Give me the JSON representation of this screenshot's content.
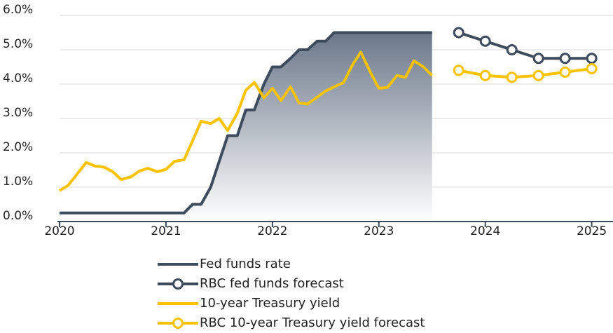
{
  "chart_data": {
    "type": "line",
    "x": [
      2020.0,
      2020.08,
      2020.17,
      2020.25,
      2020.33,
      2020.42,
      2020.5,
      2020.58,
      2020.67,
      2020.75,
      2020.83,
      2020.92,
      2021.0,
      2021.08,
      2021.17,
      2021.25,
      2021.33,
      2021.42,
      2021.5,
      2021.58,
      2021.67,
      2021.75,
      2021.83,
      2021.92,
      2022.0,
      2022.08,
      2022.17,
      2022.25,
      2022.33,
      2022.42,
      2022.5,
      2022.58,
      2022.67,
      2022.75,
      2022.83,
      2022.92,
      2023.0,
      2023.08,
      2023.17,
      2023.25,
      2023.33,
      2023.42,
      2023.5
    ],
    "series": [
      {
        "name": "Fed funds rate",
        "color": "#3d4b5c",
        "area": true,
        "markers": false,
        "values": [
          0.25,
          0.25,
          0.25,
          0.25,
          0.25,
          0.25,
          0.25,
          0.25,
          0.25,
          0.25,
          0.25,
          0.25,
          0.25,
          0.25,
          0.25,
          0.5,
          0.5,
          1.0,
          1.75,
          2.5,
          2.5,
          3.25,
          3.25,
          4.0,
          4.5,
          4.5,
          4.75,
          5.0,
          5.0,
          5.25,
          5.25,
          5.5,
          5.5,
          5.5,
          5.5,
          5.5,
          5.5,
          5.5,
          5.5,
          5.5,
          5.5,
          5.5,
          5.5
        ]
      },
      {
        "name": "RBC fed funds forecast",
        "color": "#3d4b5c",
        "area": false,
        "markers": true,
        "x": [
          2023.75,
          2024.0,
          2024.25,
          2024.5,
          2024.75,
          2025.0
        ],
        "values": [
          5.5,
          5.25,
          5.0,
          4.75,
          4.75,
          4.75
        ]
      },
      {
        "name": "10-year Treasury yield",
        "color": "#fbc200",
        "area": false,
        "markers": false,
        "values": [
          0.9,
          1.05,
          1.4,
          1.72,
          1.62,
          1.58,
          1.45,
          1.22,
          1.3,
          1.47,
          1.55,
          1.45,
          1.52,
          1.75,
          1.8,
          2.35,
          2.92,
          2.85,
          3.0,
          2.65,
          3.15,
          3.82,
          4.05,
          3.6,
          3.88,
          3.52,
          3.92,
          3.45,
          3.42,
          3.62,
          3.8,
          3.92,
          4.05,
          4.55,
          4.93,
          4.35,
          3.88,
          3.9,
          4.25,
          4.2,
          4.68,
          4.5,
          4.25
        ]
      },
      {
        "name": "RBC 10-year Treasury yield forecast",
        "color": "#fbc200",
        "area": false,
        "markers": true,
        "x": [
          2023.75,
          2024.0,
          2024.25,
          2024.5,
          2024.75,
          2025.0
        ],
        "values": [
          4.4,
          4.25,
          4.2,
          4.25,
          4.35,
          4.45
        ]
      }
    ],
    "xlim": [
      2020,
      2025.2
    ],
    "xticks": [
      2020,
      2021,
      2022,
      2023,
      2024,
      2025
    ],
    "ylim": [
      0,
      6
    ],
    "yticks": [
      {
        "value": 0,
        "label": "0.0%"
      },
      {
        "value": 1,
        "label": "1.0%"
      },
      {
        "value": 2,
        "label": "2.0%"
      },
      {
        "value": 3,
        "label": "3.0%"
      },
      {
        "value": 4,
        "label": "4.0%"
      },
      {
        "value": 5,
        "label": "5.0%"
      },
      {
        "value": 6,
        "label": "6.0%"
      }
    ],
    "grid": true,
    "legend": "bottom"
  }
}
